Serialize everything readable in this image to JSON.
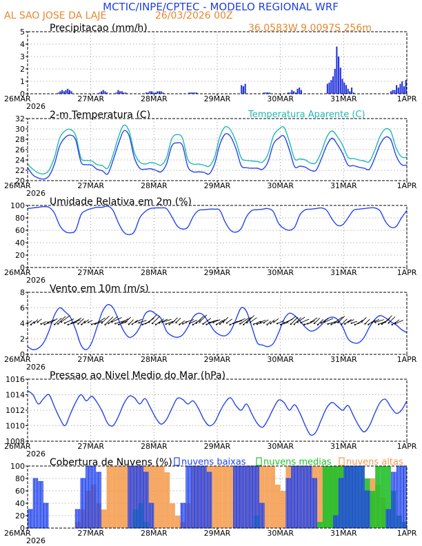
{
  "header": {
    "title": "MCTIC/INPE/CPTEC - MODELO REGIONAL WRF",
    "location": "AL SAO JOSE DA LAJE",
    "run": "26/03/2026 00Z",
    "coords": "36.0583W 9.0097S 256m"
  },
  "colors": {
    "title": "#1f3fe0",
    "header_orange": "#e8862a",
    "blue": "#2244ee",
    "cyan": "#20b8b0",
    "orange": "#f59a4a",
    "green": "#22c02a",
    "barblue": "#2233dd"
  },
  "time_axis": {
    "days": 6.0,
    "ticks": [
      {
        "t": 0,
        "label": "26MAR"
      },
      {
        "t": 1,
        "label": "27MAR"
      },
      {
        "t": 2,
        "label": "28MAR"
      },
      {
        "t": 3,
        "label": "29MAR"
      },
      {
        "t": 4,
        "label": "30MAR"
      },
      {
        "t": 5,
        "label": "31MAR"
      },
      {
        "t": 6,
        "label": "1APR"
      }
    ],
    "year": "2026"
  },
  "chart_data": [
    {
      "type": "bar",
      "title": "Precipitacao (mm/h)",
      "ylabel": "mm/h",
      "ylim": [
        0,
        5
      ],
      "yticks": [
        0,
        1,
        2,
        3,
        4,
        5
      ],
      "step_hours": 1,
      "values": [
        0,
        0,
        0,
        0,
        0,
        0,
        0,
        0,
        0,
        0,
        0,
        0,
        0,
        0,
        0,
        0,
        0.1,
        0.2,
        0.3,
        0.2,
        0.3,
        0.4,
        0.3,
        0.2,
        0,
        0,
        0,
        0,
        0,
        0,
        0,
        0,
        0,
        0,
        0,
        0,
        0,
        0,
        0.1,
        0.2,
        0.3,
        0.2,
        0.1,
        0,
        0,
        0,
        0,
        0.1,
        0.3,
        0.2,
        0.2,
        0.1,
        0.1,
        0,
        0,
        0,
        0,
        0,
        0,
        0,
        0,
        0,
        0,
        0.1,
        0.1,
        0.2,
        0.2,
        0.1,
        0.1,
        0.2,
        0.2,
        0.2,
        0.1,
        0,
        0,
        0,
        0,
        0,
        0,
        0,
        0,
        0,
        0,
        0,
        0,
        0,
        0.1,
        0.1,
        0.1,
        0.1,
        0.1,
        0,
        0,
        0,
        0,
        0,
        0,
        0,
        0,
        0,
        0,
        0,
        0,
        0,
        0,
        0,
        0,
        0,
        0,
        0,
        0,
        0,
        0,
        0,
        0.7,
        0.6,
        0.8,
        0,
        0,
        0,
        0,
        0,
        0,
        0,
        0,
        0,
        0.1,
        0.1,
        0.1,
        0.1,
        0,
        0,
        0,
        0,
        0,
        0,
        0,
        0,
        0,
        0.1,
        0.1,
        0.3,
        0.2,
        0.1,
        0.4,
        0.5,
        0.3,
        0,
        0,
        0,
        0,
        0,
        0,
        0,
        0,
        0,
        0,
        0,
        0,
        0,
        0.8,
        0.9,
        1.1,
        1.4,
        2.0,
        3.8,
        3.0,
        2.1,
        1.2,
        0.9,
        0.7,
        0.4,
        0.2,
        0.5,
        0.1,
        0,
        0,
        0,
        0,
        0,
        0,
        0,
        0,
        0,
        0,
        0,
        0,
        0,
        0,
        0,
        0,
        0,
        0,
        0,
        0.2,
        0.3,
        0.3,
        0.7,
        0.5,
        0.8,
        1.0,
        0.6,
        1.1
      ]
    },
    {
      "type": "line",
      "title": "2-m Temperatura (C)",
      "legend": "Temperatura Aparente (C)",
      "ylim": [
        20,
        32
      ],
      "yticks": [
        20,
        22,
        24,
        26,
        28,
        30,
        32
      ],
      "step_hours": 3,
      "series": [
        {
          "name": "Temperatura (C)",
          "values": [
            22.5,
            21.1,
            20.5,
            20.3,
            20.9,
            23.1,
            26.7,
            28.3,
            28.8,
            27.9,
            23.6,
            23.1,
            23.0,
            22.2,
            21.9,
            21.3,
            23.9,
            27.1,
            29.6,
            28.7,
            24.4,
            22.4,
            22.2,
            22.3,
            22.0,
            21.7,
            23.2,
            26.7,
            27.3,
            26.8,
            22.7,
            21.7,
            21.7,
            21.6,
            21.3,
            23.2,
            27.0,
            29.0,
            28.5,
            26.2,
            22.9,
            22.5,
            22.4,
            22.4,
            22.2,
            23.6,
            27.0,
            28.2,
            28.6,
            26.0,
            22.7,
            22.8,
            22.6,
            22.0,
            22.0,
            24.2,
            26.8,
            28.2,
            27.0,
            25.2,
            23.0,
            22.9,
            22.6,
            22.4,
            22.2,
            24.4,
            27.0,
            28.4,
            27.9,
            24.8,
            23.1,
            23.0
          ]
        },
        {
          "name": "Temperatura Aparente (C)",
          "values": [
            23.2,
            22.2,
            21.5,
            21.3,
            22.0,
            24.4,
            28.2,
            29.6,
            29.9,
            28.7,
            24.4,
            23.9,
            23.8,
            23.1,
            22.9,
            22.4,
            25.0,
            28.4,
            30.7,
            29.6,
            25.4,
            23.6,
            23.2,
            23.5,
            23.3,
            23.0,
            24.4,
            28.1,
            28.9,
            28.2,
            24.1,
            23.2,
            23.2,
            23.0,
            22.8,
            24.5,
            28.5,
            30.4,
            29.8,
            27.6,
            24.4,
            23.9,
            23.8,
            23.7,
            23.6,
            25.1,
            28.6,
            29.9,
            30.3,
            27.6,
            24.2,
            24.2,
            24.0,
            23.4,
            23.5,
            25.6,
            28.4,
            29.6,
            28.5,
            26.8,
            24.5,
            24.3,
            24.0,
            23.8,
            23.7,
            25.9,
            28.6,
            30.0,
            29.5,
            26.3,
            24.6,
            24.5
          ]
        }
      ]
    },
    {
      "type": "line",
      "title": "Umidade Relativa em 2m (%)",
      "ylim": [
        0,
        100
      ],
      "yticks": [
        0,
        20,
        40,
        60,
        80,
        100
      ],
      "step_hours": 3,
      "series": [
        {
          "name": "Umidade Relativa (%)",
          "values": [
            95,
            96,
            97,
            98,
            97,
            88,
            68,
            58,
            56,
            60,
            85,
            92,
            95,
            97,
            97,
            99,
            92,
            72,
            57,
            53,
            58,
            80,
            90,
            95,
            96,
            96,
            95,
            82,
            67,
            62,
            65,
            82,
            92,
            93,
            94,
            94,
            92,
            73,
            60,
            57,
            63,
            82,
            92,
            93,
            94,
            95,
            90,
            71,
            63,
            60,
            65,
            85,
            93,
            94,
            95,
            96,
            92,
            78,
            68,
            69,
            80,
            92,
            94,
            95,
            96,
            96,
            91,
            74,
            65,
            66,
            80,
            92
          ]
        }
      ]
    },
    {
      "type": "line",
      "title": "Vento em 10m (m/s)",
      "ylim": [
        0,
        8
      ],
      "yticks": [
        0,
        2,
        4,
        6,
        8
      ],
      "step_hours": 3,
      "series": [
        {
          "name": "Vento em 10m (m/s)",
          "values": [
            1.0,
            0.6,
            0.8,
            1.5,
            3.0,
            5.0,
            6.0,
            5.5,
            4.8,
            3.2,
            1.2,
            0.6,
            1.5,
            3.5,
            5.5,
            6.4,
            6.0,
            4.5,
            3.0,
            2.2,
            2.5,
            3.5,
            5.2,
            5.6,
            5.2,
            4.6,
            3.0,
            2.4,
            2.2,
            2.5,
            3.5,
            4.8,
            5.3,
            5.0,
            4.0,
            3.0,
            2.5,
            2.4,
            3.0,
            4.5,
            6.0,
            5.5,
            3.5,
            1.5,
            1.2,
            1.0,
            1.4,
            2.8,
            4.5,
            5.3,
            5.0,
            4.3,
            3.5,
            3.0,
            3.2,
            3.8,
            4.5,
            4.8,
            4.5,
            3.5,
            2.0,
            1.5,
            1.5,
            2.2,
            3.5,
            4.5,
            5.0,
            4.7,
            4.2,
            3.8,
            3.2,
            2.8
          ]
        }
      ]
    },
    {
      "type": "line",
      "title": "Pressao ao Nivel Medio do Mar (hPa)",
      "ylim": [
        1008,
        1016
      ],
      "yticks": [
        1008,
        1010,
        1012,
        1014,
        1016
      ],
      "step_hours": 3,
      "series": [
        {
          "name": "Pressao (hPa)",
          "values": [
            1014.5,
            1014.0,
            1012.8,
            1013.5,
            1014.0,
            1012.5,
            1011.0,
            1010.0,
            1011.5,
            1013.0,
            1014.0,
            1013.2,
            1013.8,
            1013.0,
            1011.8,
            1010.3,
            1010.0,
            1011.2,
            1012.8,
            1013.8,
            1013.6,
            1012.8,
            1013.5,
            1012.3,
            1011.0,
            1010.2,
            1010.8,
            1012.2,
            1013.5,
            1013.4,
            1012.8,
            1013.2,
            1012.2,
            1010.8,
            1010.0,
            1010.4,
            1011.8,
            1013.0,
            1013.6,
            1012.6,
            1012.0,
            1012.8,
            1011.5,
            1010.3,
            1009.8,
            1010.8,
            1012.2,
            1013.3,
            1013.0,
            1012.0,
            1012.7,
            1011.6,
            1010.0,
            1008.8,
            1009.2,
            1010.8,
            1012.3,
            1013.0,
            1012.5,
            1012.0,
            1012.6,
            1011.3,
            1010.0,
            1009.2,
            1010.0,
            1011.6,
            1013.0,
            1013.4,
            1012.4,
            1011.6,
            1012.0,
            1013.2
          ]
        }
      ]
    },
    {
      "type": "bar",
      "title": "Cobertura de Nuvens (%)",
      "ylim": [
        0,
        100
      ],
      "yticks": [
        0,
        20,
        40,
        60,
        80,
        100
      ],
      "legend": [
        "nuvens baixas",
        "nuvens medias",
        "nuvens altas"
      ],
      "step_hours": 3,
      "series": [
        {
          "name": "nuvens altas",
          "values": [
            0,
            0,
            0,
            0,
            0,
            0,
            0,
            0,
            0,
            10,
            30,
            60,
            70,
            40,
            30,
            100,
            100,
            100,
            100,
            100,
            100,
            100,
            100,
            100,
            100,
            100,
            90,
            40,
            20,
            10,
            40,
            100,
            100,
            100,
            100,
            100,
            100,
            100,
            100,
            100,
            100,
            100,
            100,
            100,
            100,
            100,
            100,
            70,
            60,
            100,
            100,
            100,
            100,
            100,
            100,
            100,
            100,
            100,
            100,
            100,
            100,
            100,
            90,
            60,
            60,
            80,
            70,
            50,
            0,
            0,
            0,
            0
          ]
        },
        {
          "name": "nuvens medias",
          "values": [
            0,
            0,
            0,
            0,
            0,
            0,
            0,
            0,
            0,
            0,
            0,
            0,
            0,
            0,
            0,
            0,
            0,
            0,
            0,
            0,
            30,
            40,
            10,
            0,
            0,
            0,
            0,
            0,
            0,
            0,
            0,
            0,
            0,
            0,
            0,
            0,
            0,
            0,
            0,
            0,
            0,
            0,
            0,
            20,
            0,
            0,
            0,
            0,
            0,
            0,
            0,
            0,
            0,
            0,
            0,
            10,
            100,
            100,
            100,
            100,
            100,
            100,
            100,
            100,
            80,
            60,
            100,
            100,
            100,
            60,
            20,
            10
          ]
        },
        {
          "name": "nuvens baixas",
          "values": [
            30,
            80,
            75,
            40,
            0,
            0,
            0,
            0,
            0,
            30,
            80,
            100,
            100,
            90,
            0,
            0,
            0,
            0,
            0,
            100,
            100,
            100,
            90,
            40,
            0,
            0,
            0,
            0,
            0,
            40,
            100,
            100,
            100,
            100,
            90,
            0,
            0,
            0,
            0,
            100,
            100,
            100,
            100,
            100,
            40,
            0,
            0,
            0,
            0,
            80,
            100,
            100,
            100,
            100,
            80,
            0,
            0,
            0,
            20,
            80,
            100,
            100,
            100,
            100,
            60,
            0,
            0,
            0,
            30,
            90,
            100,
            100
          ]
        }
      ]
    }
  ]
}
